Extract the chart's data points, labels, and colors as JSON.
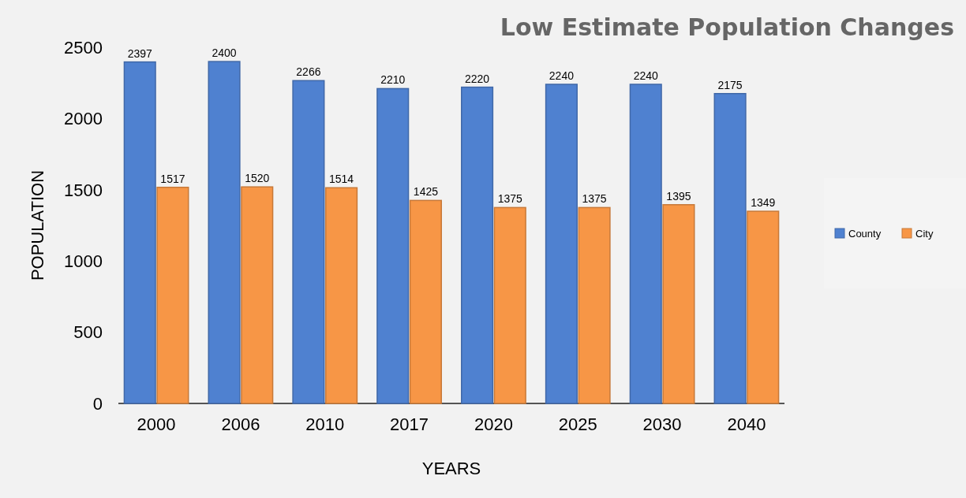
{
  "chart_data": {
    "type": "bar",
    "title": "Low Estimate Population Changes",
    "xlabel": "YEARS",
    "ylabel": "POPULATION",
    "categories": [
      "2000",
      "2006",
      "2010",
      "2017",
      "2020",
      "2025",
      "2030",
      "2040"
    ],
    "series": [
      {
        "name": "County",
        "color": "#4f81d0",
        "values": [
          2397,
          2400,
          2266,
          2210,
          2220,
          2240,
          2240,
          2175
        ]
      },
      {
        "name": "City",
        "color": "#f79646",
        "values": [
          1517,
          1520,
          1514,
          1425,
          1375,
          1375,
          1395,
          1349
        ]
      }
    ],
    "ylim": [
      0,
      2500
    ],
    "yticks": [
      0,
      500,
      1000,
      1500,
      2000,
      2500
    ],
    "data_labels": true,
    "legend": "right",
    "grid": false
  }
}
